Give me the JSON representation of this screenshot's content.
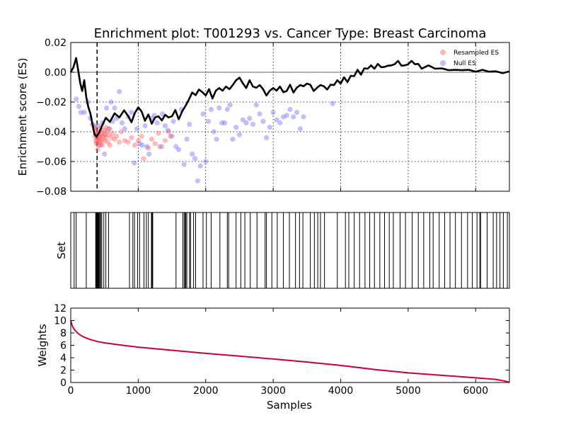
{
  "chart_data": {
    "title": "Enrichment plot: T001293 vs. Cancer Type: Breast Carcinoma",
    "xlabel": "Samples",
    "xlim": [
      0,
      6500
    ],
    "x_ticks": [
      0,
      1000,
      2000,
      3000,
      4000,
      5000,
      6000
    ],
    "x_tick_labels": [
      "0",
      "1000",
      "2000",
      "3000",
      "4000",
      "5000",
      "6000"
    ],
    "es_panel": {
      "type": "line",
      "ylabel": "Enrichment score (ES)",
      "ylim": [
        -0.08,
        0.02
      ],
      "y_ticks": [
        0.02,
        0.0,
        -0.02,
        -0.04,
        -0.06,
        -0.08
      ],
      "y_tick_labels": [
        "0.02",
        "0.00",
        "−0.02",
        "−0.04",
        "−0.06",
        "−0.08"
      ],
      "grid": true,
      "legend_position": "top-right",
      "leading_edge_x": 390,
      "colors": {
        "line": "#000000",
        "resampled": "#ff5a5a",
        "null": "#6a6aff"
      },
      "series": [
        {
          "name": "Enrichment score",
          "x": [
            0,
            40,
            80,
            110,
            140,
            170,
            200,
            230,
            260,
            290,
            320,
            350,
            380,
            420,
            470,
            520,
            580,
            650,
            720,
            790,
            850,
            900,
            950,
            1000,
            1050,
            1100,
            1150,
            1200,
            1250,
            1300,
            1350,
            1400,
            1450,
            1500,
            1550,
            1600,
            1650,
            1700,
            1750,
            1800,
            1850,
            1900,
            1950,
            2000,
            2050,
            2100,
            2150,
            2200,
            2250,
            2300,
            2350,
            2400,
            2450,
            2500,
            2550,
            2600,
            2650,
            2700,
            2750,
            2800,
            2850,
            2900,
            2950,
            3000,
            3050,
            3100,
            3150,
            3200,
            3250,
            3300,
            3350,
            3400,
            3450,
            3500,
            3550,
            3600,
            3650,
            3700,
            3750,
            3800,
            3850,
            3900,
            3950,
            4000,
            4050,
            4100,
            4150,
            4200,
            4250,
            4300,
            4350,
            4400,
            4450,
            4500,
            4550,
            4600,
            4650,
            4700,
            4750,
            4800,
            4850,
            4900,
            4950,
            5000,
            5050,
            5100,
            5150,
            5200,
            5300,
            5400,
            5500,
            5600,
            5700,
            5800,
            5900,
            6000,
            6100,
            6200,
            6300,
            6400,
            6500
          ],
          "y": [
            0.0,
            0.004,
            0.009,
            0.002,
            -0.008,
            -0.012,
            -0.006,
            -0.016,
            -0.024,
            -0.027,
            -0.035,
            -0.041,
            -0.044,
            -0.04,
            -0.036,
            -0.03,
            -0.034,
            -0.027,
            -0.031,
            -0.025,
            -0.03,
            -0.033,
            -0.028,
            -0.023,
            -0.027,
            -0.032,
            -0.029,
            -0.034,
            -0.031,
            -0.029,
            -0.033,
            -0.028,
            -0.031,
            -0.029,
            -0.026,
            -0.031,
            -0.027,
            -0.022,
            -0.019,
            -0.013,
            -0.016,
            -0.011,
            -0.014,
            -0.015,
            -0.012,
            -0.017,
            -0.013,
            -0.01,
            -0.013,
            -0.009,
            -0.012,
            -0.008,
            -0.006,
            -0.003,
            -0.008,
            -0.01,
            -0.006,
            -0.009,
            -0.011,
            -0.008,
            -0.012,
            -0.015,
            -0.013,
            -0.01,
            -0.013,
            -0.009,
            -0.014,
            -0.012,
            -0.009,
            -0.013,
            -0.011,
            -0.008,
            -0.01,
            -0.007,
            -0.009,
            -0.012,
            -0.011,
            -0.008,
            -0.01,
            -0.011,
            -0.009,
            -0.008,
            -0.006,
            -0.007,
            -0.004,
            -0.006,
            -0.003,
            -0.002,
            0.001,
            -0.001,
            0.002,
            0.003,
            0.004,
            0.003,
            0.005,
            0.004,
            0.003,
            0.005,
            0.004,
            0.006,
            0.007,
            0.005,
            0.004,
            0.006,
            0.007,
            0.006,
            0.005,
            0.003,
            0.004,
            0.003,
            0.002,
            0.002,
            0.001,
            0.002,
            0.001,
            0.001,
            0.001,
            0.001,
            0.0,
            0.0,
            0.0
          ]
        }
      ],
      "scatter_series": [
        {
          "name": "Resampled ES",
          "points": [
            [
              350,
              -0.038
            ],
            [
              360,
              -0.043
            ],
            [
              370,
              -0.046
            ],
            [
              375,
              -0.04
            ],
            [
              380,
              -0.048
            ],
            [
              385,
              -0.044
            ],
            [
              390,
              -0.042
            ],
            [
              395,
              -0.047
            ],
            [
              400,
              -0.041
            ],
            [
              405,
              -0.045
            ],
            [
              410,
              -0.049
            ],
            [
              415,
              -0.043
            ],
            [
              420,
              -0.046
            ],
            [
              425,
              -0.04
            ],
            [
              430,
              -0.044
            ],
            [
              440,
              -0.047
            ],
            [
              450,
              -0.042
            ],
            [
              460,
              -0.045
            ],
            [
              470,
              -0.041
            ],
            [
              480,
              -0.043
            ],
            [
              490,
              -0.039
            ],
            [
              500,
              -0.046
            ],
            [
              510,
              -0.042
            ],
            [
              520,
              -0.044
            ],
            [
              530,
              -0.04
            ],
            [
              545,
              -0.047
            ],
            [
              560,
              -0.042
            ],
            [
              580,
              -0.038
            ],
            [
              600,
              -0.044
            ],
            [
              620,
              -0.041
            ],
            [
              650,
              -0.045
            ],
            [
              680,
              -0.043
            ],
            [
              720,
              -0.047
            ],
            [
              750,
              -0.04
            ],
            [
              800,
              -0.046
            ],
            [
              850,
              -0.047
            ],
            [
              900,
              -0.044
            ],
            [
              950,
              -0.049
            ],
            [
              1000,
              -0.046
            ],
            [
              1050,
              -0.043
            ],
            [
              1080,
              -0.058
            ],
            [
              1150,
              -0.051
            ],
            [
              1200,
              -0.045
            ],
            [
              1250,
              -0.048
            ],
            [
              1300,
              -0.041
            ],
            [
              1350,
              -0.05
            ],
            [
              1400,
              -0.046
            ],
            [
              1450,
              -0.04
            ],
            [
              1500,
              -0.043
            ],
            [
              360,
              -0.036
            ],
            [
              400,
              -0.052
            ],
            [
              440,
              -0.038
            ],
            [
              470,
              -0.049
            ],
            [
              520,
              -0.037
            ],
            [
              580,
              -0.049
            ]
          ]
        },
        {
          "name": "Null ES",
          "points": [
            [
              80,
              -0.018
            ],
            [
              120,
              -0.023
            ],
            [
              150,
              -0.027
            ],
            [
              200,
              -0.027
            ],
            [
              250,
              -0.02
            ],
            [
              290,
              -0.031
            ],
            [
              320,
              -0.035
            ],
            [
              350,
              -0.037
            ],
            [
              380,
              -0.041
            ],
            [
              410,
              -0.036
            ],
            [
              440,
              -0.049
            ],
            [
              470,
              -0.034
            ],
            [
              500,
              -0.055
            ],
            [
              530,
              -0.024
            ],
            [
              560,
              -0.038
            ],
            [
              600,
              -0.02
            ],
            [
              620,
              -0.033
            ],
            [
              650,
              -0.024
            ],
            [
              680,
              -0.031
            ],
            [
              720,
              -0.013
            ],
            [
              760,
              -0.034
            ],
            [
              800,
              -0.038
            ],
            [
              850,
              -0.03
            ],
            [
              900,
              -0.027
            ],
            [
              940,
              -0.061
            ],
            [
              980,
              -0.038
            ],
            [
              1020,
              -0.048
            ],
            [
              1060,
              -0.049
            ],
            [
              1100,
              -0.036
            ],
            [
              1130,
              -0.05
            ],
            [
              1160,
              -0.055
            ],
            [
              1200,
              -0.031
            ],
            [
              1240,
              -0.029
            ],
            [
              1280,
              -0.034
            ],
            [
              1320,
              -0.05
            ],
            [
              1360,
              -0.028
            ],
            [
              1400,
              -0.036
            ],
            [
              1440,
              -0.039
            ],
            [
              1480,
              -0.043
            ],
            [
              1520,
              -0.033
            ],
            [
              1560,
              -0.05
            ],
            [
              1600,
              -0.052
            ],
            [
              1640,
              -0.025
            ],
            [
              1680,
              -0.062
            ],
            [
              1720,
              -0.045
            ],
            [
              1760,
              -0.035
            ],
            [
              1800,
              -0.055
            ],
            [
              1840,
              -0.058
            ],
            [
              1880,
              -0.073
            ],
            [
              1920,
              -0.063
            ],
            [
              1960,
              -0.028
            ],
            [
              2000,
              -0.06
            ],
            [
              2040,
              -0.033
            ],
            [
              2080,
              -0.025
            ],
            [
              2120,
              -0.04
            ],
            [
              2160,
              -0.045
            ],
            [
              2200,
              -0.024
            ],
            [
              2240,
              -0.034
            ],
            [
              2280,
              -0.034
            ],
            [
              2320,
              -0.025
            ],
            [
              2360,
              -0.022
            ],
            [
              2400,
              -0.045
            ],
            [
              2450,
              -0.037
            ],
            [
              2500,
              -0.042
            ],
            [
              2550,
              -0.032
            ],
            [
              2600,
              -0.034
            ],
            [
              2650,
              -0.031
            ],
            [
              2700,
              -0.035
            ],
            [
              2750,
              -0.022
            ],
            [
              2800,
              -0.028
            ],
            [
              2850,
              -0.033
            ],
            [
              2900,
              -0.044
            ],
            [
              2950,
              -0.037
            ],
            [
              3000,
              -0.027
            ],
            [
              3050,
              -0.032
            ],
            [
              3100,
              -0.034
            ],
            [
              3150,
              -0.03
            ],
            [
              3200,
              -0.029
            ],
            [
              3250,
              -0.025
            ],
            [
              3300,
              -0.03
            ],
            [
              3350,
              -0.027
            ],
            [
              3400,
              -0.038
            ],
            [
              3450,
              -0.03
            ],
            [
              3880,
              -0.021
            ]
          ]
        }
      ]
    },
    "set_panel": {
      "type": "line",
      "ylabel": "Set",
      "hit_positions": [
        50,
        80,
        230,
        370,
        375,
        380,
        388,
        395,
        402,
        410,
        420,
        430,
        445,
        460,
        490,
        520,
        560,
        870,
        920,
        945,
        990,
        1020,
        1085,
        1120,
        1150,
        1195,
        1205,
        1215,
        1560,
        1660,
        1680,
        1695,
        1705,
        1720,
        1760,
        1775,
        1820,
        1850,
        1960,
        2010,
        2080,
        2210,
        2320,
        2340,
        2450,
        2520,
        2580,
        2660,
        2760,
        2880,
        2900,
        2980,
        3060,
        3150,
        3240,
        3330,
        3390,
        3440,
        3550,
        3610,
        3660,
        3700,
        3760,
        3950,
        4070,
        4120,
        4200,
        4280,
        4360,
        4430,
        4500,
        4580,
        4650,
        4720,
        4780,
        4880,
        4960,
        5060,
        5150,
        5230,
        5320,
        5370,
        5460,
        5540,
        5620,
        5700,
        5790,
        5880,
        5950,
        6020,
        6060,
        6075,
        6170,
        6260,
        6310,
        6360,
        6410,
        6470
      ]
    },
    "weights_panel": {
      "type": "line",
      "ylabel": "Weights",
      "ylim": [
        0,
        12
      ],
      "y_ticks": [
        0,
        2,
        4,
        6,
        8,
        10,
        12
      ],
      "y_tick_labels": [
        "0",
        "2",
        "4",
        "6",
        "8",
        "10",
        "12"
      ],
      "colors": {
        "line": "#cc0033"
      },
      "series": [
        {
          "name": "Weights",
          "x": [
            0,
            20,
            50,
            100,
            150,
            200,
            300,
            400,
            500,
            700,
            1000,
            1500,
            2000,
            2500,
            3000,
            3500,
            4000,
            4500,
            5000,
            5500,
            6000,
            6300,
            6450,
            6500
          ],
          "y": [
            10.0,
            9.2,
            8.6,
            8.0,
            7.6,
            7.3,
            6.9,
            6.6,
            6.4,
            6.1,
            5.7,
            5.2,
            4.7,
            4.25,
            3.8,
            3.3,
            2.75,
            2.1,
            1.55,
            1.15,
            0.75,
            0.5,
            0.2,
            0.0
          ]
        }
      ]
    }
  }
}
